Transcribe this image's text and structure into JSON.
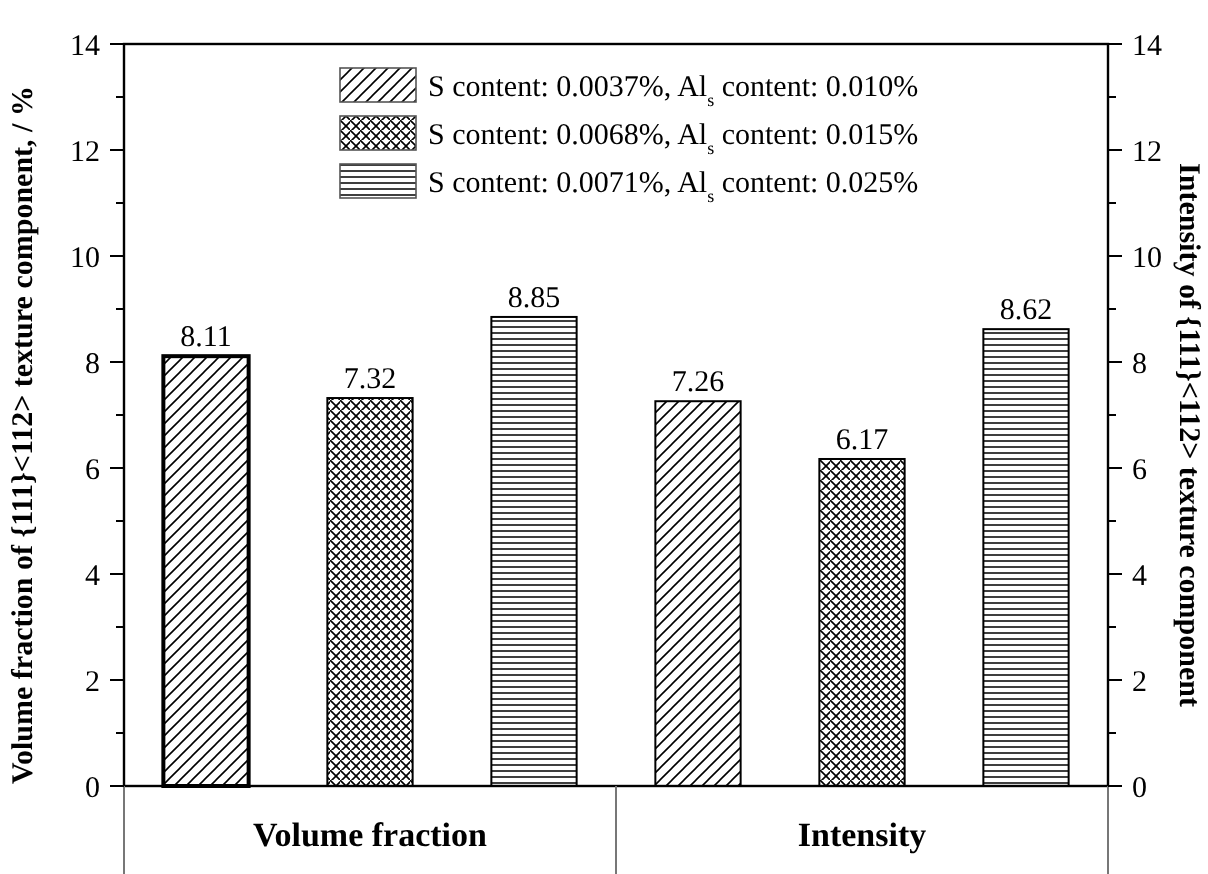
{
  "chart_data": {
    "type": "bar",
    "ylabel": "Volume fraction of {111}<112> texture component, / %",
    "y2label": "Intensity of {111}<112> texture component",
    "categories": [
      "Volume fraction",
      "Intensity"
    ],
    "series": [
      {
        "name": "S content: 0.0037%, Al$_{s}$ content: 0.010%",
        "color": "#000000",
        "values": [
          8.11,
          7.26
        ]
      },
      {
        "name": "S content: 0.0068%, Al$_{s}$ content: 0.015%",
        "color": "#000000",
        "values": [
          7.32,
          6.17
        ]
      },
      {
        "name": "S content: 0.0071%, Al$_{s}$ content: 0.025%",
        "color": "#000000",
        "values": [
          8.85,
          8.62
        ]
      }
    ],
    "ylim": [
      0,
      14
    ],
    "yticks": [
      0,
      {
        "value": 1,
        "label": null
      },
      2,
      {
        "value": 3,
        "label": null
      },
      4,
      {
        "value": 5,
        "label": null
      },
      6,
      {
        "value": 7,
        "label": null
      },
      8,
      {
        "value": 9,
        "label": null
      },
      10,
      {
        "value": 11,
        "label": null
      },
      12,
      {
        "value": 13,
        "label": null
      },
      14
    ],
    "y2lim": [
      0,
      14
    ],
    "y2ticks": [
      0,
      {
        "value": 1,
        "label": null
      },
      2,
      {
        "value": 3,
        "label": null
      },
      4,
      {
        "value": 5,
        "label": null
      },
      6,
      {
        "value": 7,
        "label": null
      },
      8,
      {
        "value": 9,
        "label": null
      },
      10,
      {
        "value": 11,
        "label": null
      },
      12,
      {
        "value": 13,
        "label": null
      },
      14
    ],
    "data_labels": true,
    "legend": "top",
    "grid": false
  }
}
